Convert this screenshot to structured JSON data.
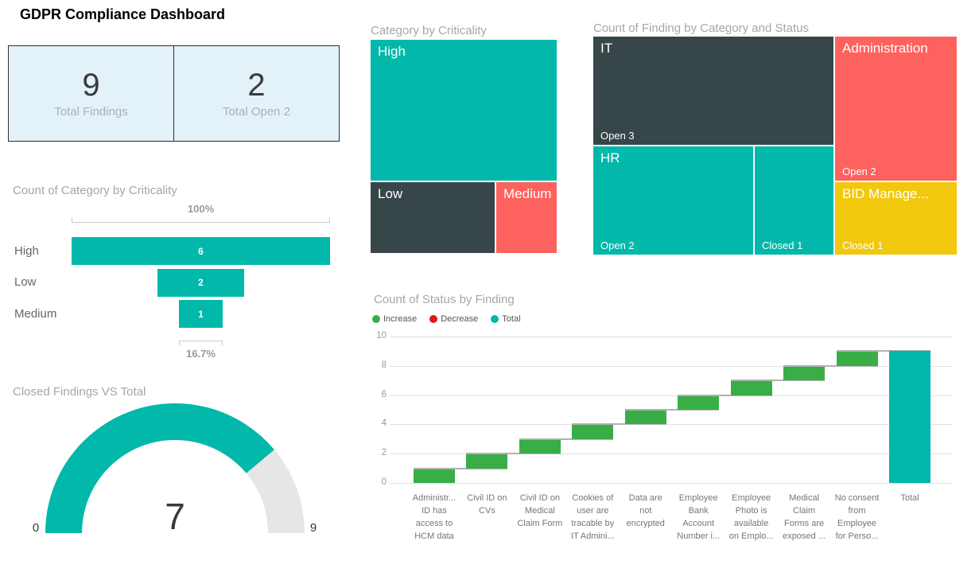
{
  "page_title": "GDPR Compliance Dashboard",
  "colors": {
    "teal": "#01B8AA",
    "dark_slate": "#374649",
    "salmon": "#FD625E",
    "gold": "#F2C80F",
    "green": "#3AAE46",
    "decrease_red": "#DE1B16",
    "track_gray": "#E6E6E6"
  },
  "cards": [
    {
      "value": "9",
      "label": "Total Findings"
    },
    {
      "value": "2",
      "label": "Total Open 2"
    }
  ],
  "funnel": {
    "title": "Count of Category by Criticality",
    "max_pct_label": "100%",
    "min_pct_label": "16.7%",
    "max_value": 6,
    "rows": [
      {
        "label": "High",
        "value": 6
      },
      {
        "label": "Low",
        "value": 2
      },
      {
        "label": "Medium",
        "value": 1
      }
    ]
  },
  "gauge": {
    "title": "Closed Findings VS Total",
    "value": 7,
    "min": 0,
    "max": 9
  },
  "treemap_criticality": {
    "title": "Category by Criticality",
    "blocks": [
      {
        "label": "High",
        "color": "teal"
      },
      {
        "label": "Low",
        "color": "dark_slate"
      },
      {
        "label": "Medium",
        "color": "salmon"
      }
    ]
  },
  "treemap_category": {
    "title": "Count of Finding by Category and Status",
    "blocks": [
      {
        "label": "IT",
        "status": "Open 3",
        "color": "dark_slate"
      },
      {
        "label": "HR",
        "status": "Open 2",
        "color": "teal"
      },
      {
        "label": "",
        "status": "Closed 1",
        "color": "teal"
      },
      {
        "label": "Administration",
        "status": "Open 2",
        "color": "salmon"
      },
      {
        "label": "BID Manage...",
        "status": "Closed 1",
        "color": "gold"
      }
    ]
  },
  "waterfall": {
    "title": "Count of Status by Finding",
    "legend": [
      {
        "label": "Increase",
        "color": "green"
      },
      {
        "label": "Decrease",
        "color": "decrease_red"
      },
      {
        "label": "Total",
        "color": "teal"
      }
    ],
    "y_ticks": [
      0,
      2,
      4,
      6,
      8,
      10
    ],
    "y_max": 10,
    "bars": [
      {
        "label_lines": [
          "Administr...",
          "ID has",
          "access to",
          "HCM data"
        ],
        "start": 0,
        "end": 1,
        "type": "increase"
      },
      {
        "label_lines": [
          "Civil ID on",
          "CVs"
        ],
        "start": 1,
        "end": 2,
        "type": "increase"
      },
      {
        "label_lines": [
          "Civil ID on",
          "Medical",
          "Claim Form"
        ],
        "start": 2,
        "end": 3,
        "type": "increase"
      },
      {
        "label_lines": [
          "Cookies of",
          "user are",
          "tracable by",
          "IT Admini..."
        ],
        "start": 3,
        "end": 4,
        "type": "increase"
      },
      {
        "label_lines": [
          "Data are",
          "not",
          "encrypted"
        ],
        "start": 4,
        "end": 5,
        "type": "increase"
      },
      {
        "label_lines": [
          "Employee",
          "Bank",
          "Account",
          "Number i..."
        ],
        "start": 5,
        "end": 6,
        "type": "increase"
      },
      {
        "label_lines": [
          "Employee",
          "Photo is",
          "available",
          "on Emplo..."
        ],
        "start": 6,
        "end": 7,
        "type": "increase"
      },
      {
        "label_lines": [
          "Medical",
          "Claim",
          "Forms are",
          "exposed ..."
        ],
        "start": 7,
        "end": 8,
        "type": "increase"
      },
      {
        "label_lines": [
          "No consent",
          "from",
          "Employee",
          "for Perso..."
        ],
        "start": 8,
        "end": 9,
        "type": "increase"
      },
      {
        "label_lines": [
          "Total"
        ],
        "start": 0,
        "end": 9,
        "type": "total"
      }
    ]
  },
  "chart_data": [
    {
      "type": "kpi",
      "title": "Total Findings",
      "value": 9
    },
    {
      "type": "kpi",
      "title": "Total Open 2",
      "value": 2
    },
    {
      "type": "funnel",
      "title": "Count of Category by Criticality",
      "categories": [
        "High",
        "Low",
        "Medium"
      ],
      "values": [
        6,
        2,
        1
      ],
      "annotations": [
        "100%",
        "16.7%"
      ]
    },
    {
      "type": "gauge",
      "title": "Closed Findings VS Total",
      "value": 7,
      "min": 0,
      "max": 9
    },
    {
      "type": "treemap",
      "title": "Category by Criticality",
      "items": [
        {
          "label": "High",
          "value": 6
        },
        {
          "label": "Low",
          "value": 2
        },
        {
          "label": "Medium",
          "value": 1
        }
      ]
    },
    {
      "type": "treemap",
      "title": "Count of Finding by Category and Status",
      "items": [
        {
          "category": "IT",
          "status": "Open",
          "value": 3
        },
        {
          "category": "HR",
          "status": "Open",
          "value": 2
        },
        {
          "category": "HR",
          "status": "Closed",
          "value": 1
        },
        {
          "category": "Administration",
          "status": "Open",
          "value": 2
        },
        {
          "category": "BID Management",
          "status": "Closed",
          "value": 1
        }
      ]
    },
    {
      "type": "waterfall",
      "title": "Count of Status by Finding",
      "legend": [
        "Increase",
        "Decrease",
        "Total"
      ],
      "categories": [
        "Administr... ID has access to HCM data",
        "Civil ID on CVs",
        "Civil ID on Medical Claim Form",
        "Cookies of user are tracable by IT Admini...",
        "Data are not encrypted",
        "Employee Bank Account Number i...",
        "Employee Photo is available on Emplo...",
        "Medical Claim Forms are exposed ...",
        "No consent from Employee for Perso...",
        "Total"
      ],
      "values": [
        1,
        1,
        1,
        1,
        1,
        1,
        1,
        1,
        1,
        9
      ],
      "ylim": [
        0,
        10
      ],
      "grid": true,
      "legend_position": "top-left"
    }
  ]
}
